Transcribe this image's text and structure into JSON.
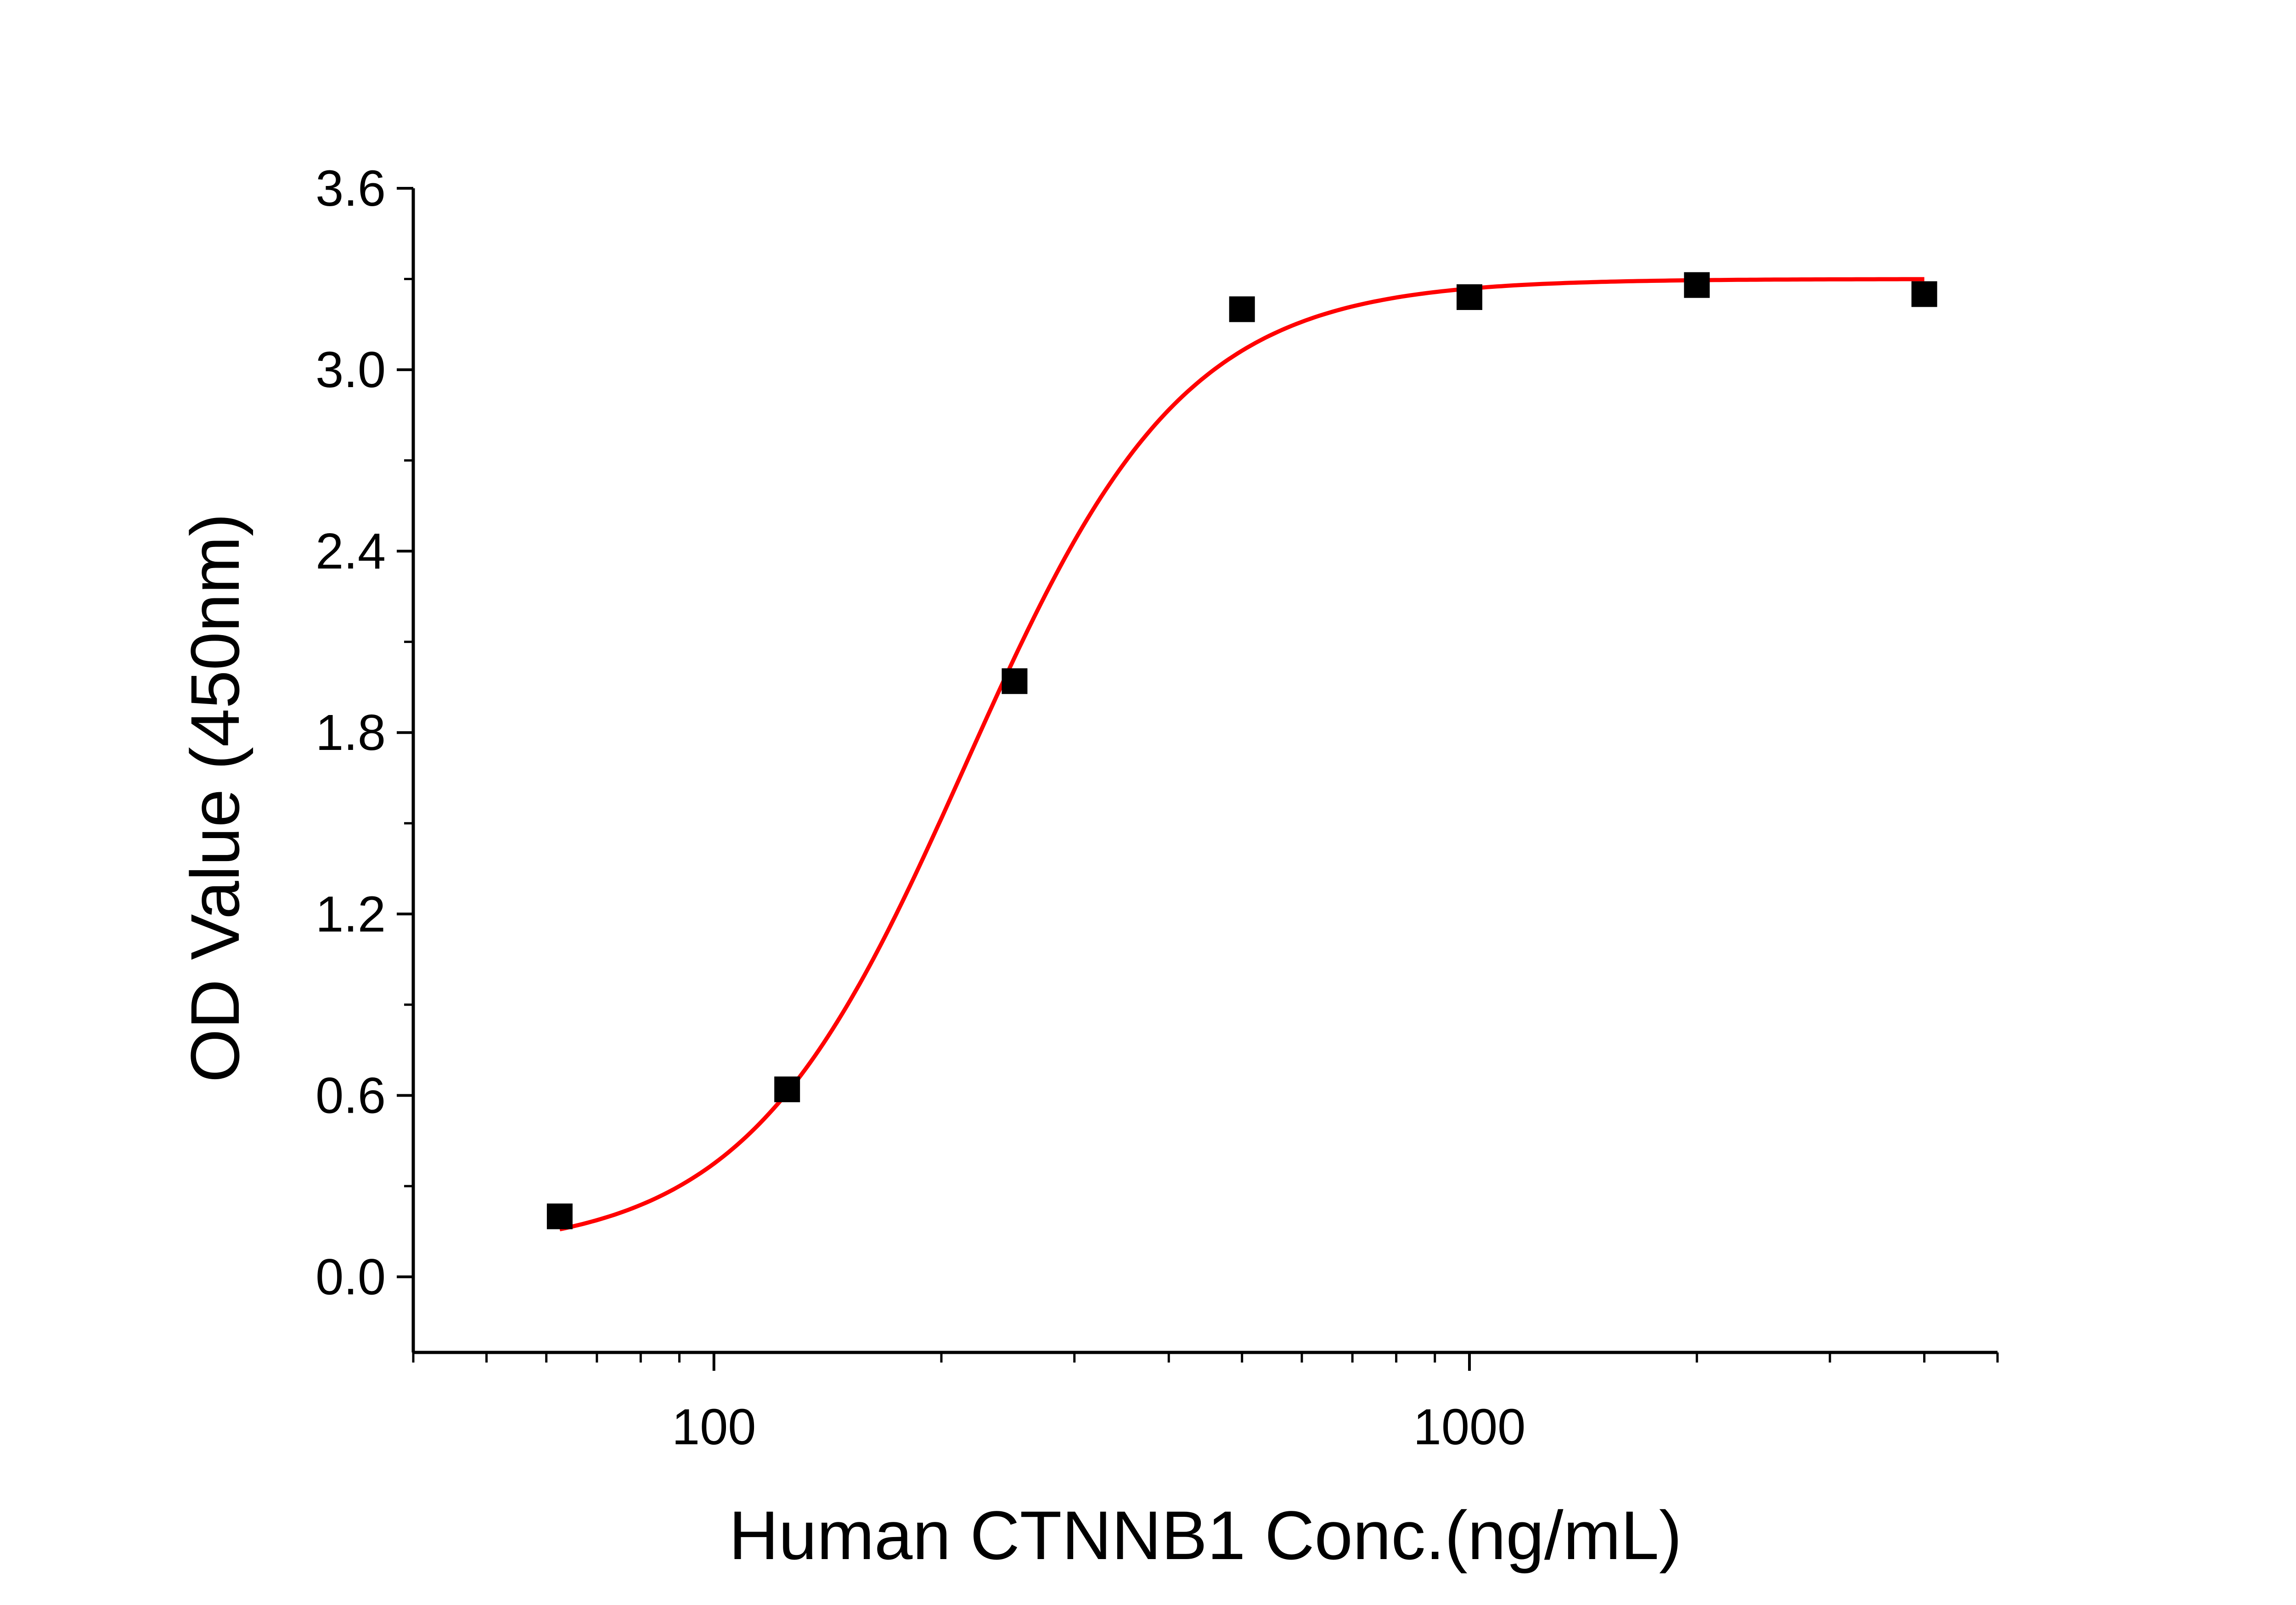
{
  "chart_data": {
    "type": "scatter",
    "xlabel": "Human CTNNB1 Conc.(ng/mL)",
    "ylabel": "OD Value (450nm)",
    "x_scale": "log",
    "xlim": [
      40,
      5000
    ],
    "ylim": [
      -0.25,
      3.6
    ],
    "x_tick_labels": [
      "100",
      "1000"
    ],
    "y_tick_labels": [
      "0.0",
      "0.6",
      "1.2",
      "1.8",
      "2.4",
      "3.0",
      "3.6"
    ],
    "grid": false,
    "points": {
      "x": [
        62.5,
        125,
        250,
        500,
        1000,
        2000,
        4000
      ],
      "y": [
        0.2,
        0.62,
        1.97,
        3.2,
        3.24,
        3.28,
        3.25
      ]
    },
    "fit_curve": {
      "type": "4PL",
      "bottom": 0.08,
      "top": 3.3,
      "ec50": 215,
      "hill": 3.0
    },
    "colors": {
      "points": "#000000",
      "fit": "#ff0000",
      "axis": "#000000"
    }
  }
}
